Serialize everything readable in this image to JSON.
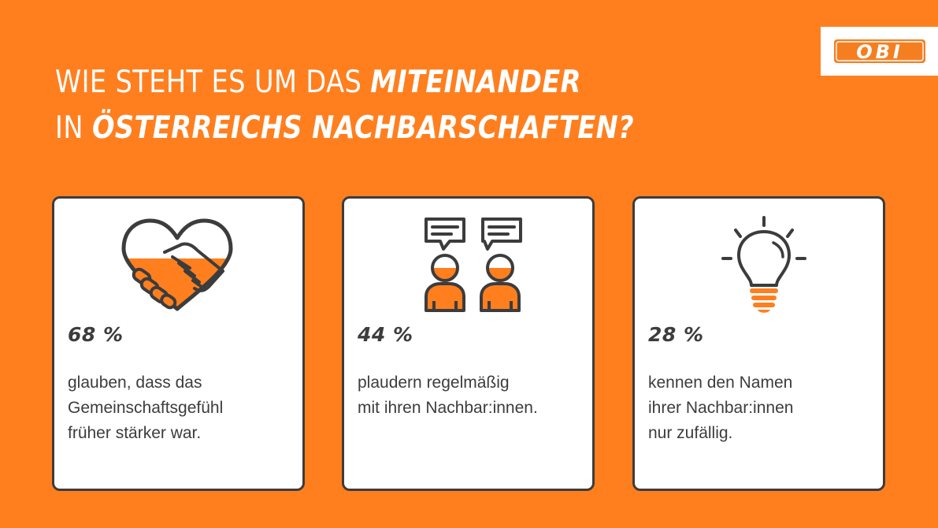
{
  "logo": {
    "text": "OBI",
    "color": "#F57F20"
  },
  "headline": {
    "line1_regular": "WIE STEHT ES UM DAS",
    "line1_bold": "MITEINANDER",
    "line2_regular": "IN",
    "line2_bold": "ÖSTERREICHS NACHBARSCHAFTEN?"
  },
  "colors": {
    "background": "#FF7F1F",
    "accent": "#FF7F1F",
    "dark": "#3c3c3c",
    "card": "#ffffff"
  },
  "cards": [
    {
      "icon": "heart-handshake-icon",
      "percent": "68 %",
      "lines": [
        "glauben, dass das",
        "Gemeinschaftsgefühl",
        "früher stärker war."
      ]
    },
    {
      "icon": "people-chatting-icon",
      "percent": "44 %",
      "lines": [
        "plaudern regelmäßig",
        "mit ihren Nachbar:innen."
      ]
    },
    {
      "icon": "lightbulb-icon",
      "percent": "28 %",
      "lines": [
        "kennen den Namen",
        "ihrer Nachbar:innen",
        "nur zufällig."
      ]
    }
  ]
}
